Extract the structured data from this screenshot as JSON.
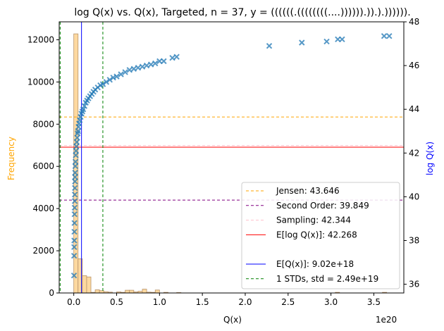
{
  "chart_data": {
    "type": "scatter",
    "title": "log Q(x) vs. Q(x), Targeted, n = 37, y = ((((((.((((((((....)))))).)).).)))))).",
    "xlabel": "Q(x)",
    "x_offset_label": "1e20",
    "ylabel_left": "Frequency",
    "ylabel_right": "log Q(x)",
    "xlim": [
      -0.17,
      3.85
    ],
    "ylim_left": [
      0,
      12850
    ],
    "ylim_right": [
      35.6,
      48
    ],
    "x_ticks": [
      0.0,
      0.5,
      1.0,
      1.5,
      2.0,
      2.5,
      3.0,
      3.5
    ],
    "x_tick_labels": [
      "0.0",
      "0.5",
      "1.0",
      "1.5",
      "2.0",
      "2.5",
      "3.0",
      "3.5"
    ],
    "y_left_ticks": [
      0,
      2000,
      4000,
      6000,
      8000,
      10000,
      12000
    ],
    "y_right_ticks": [
      36,
      38,
      40,
      42,
      44,
      46,
      48
    ],
    "colors": {
      "histogram_fill": "#fdd9a0",
      "histogram_edge": "#b8936a",
      "scatter": "#1f77b4",
      "jensen": "#ffa500",
      "second_order": "#800080",
      "sampling": "#ffc0cb",
      "e_log_q": "#ff0000",
      "e_q": "#0000ff",
      "std": "#008000",
      "left_label": "#ffa500",
      "right_label": "#0000ff"
    },
    "histogram": {
      "bin_width": 0.05,
      "bins": [
        {
          "x": 0.0,
          "count": 12280
        },
        {
          "x": 0.05,
          "count": 1620
        },
        {
          "x": 0.1,
          "count": 820
        },
        {
          "x": 0.15,
          "count": 760
        },
        {
          "x": 0.2,
          "count": 30
        },
        {
          "x": 0.25,
          "count": 150
        },
        {
          "x": 0.3,
          "count": 110
        },
        {
          "x": 0.35,
          "count": 60
        },
        {
          "x": 0.4,
          "count": 40
        },
        {
          "x": 0.5,
          "count": 50
        },
        {
          "x": 0.55,
          "count": 30
        },
        {
          "x": 0.6,
          "count": 130
        },
        {
          "x": 0.65,
          "count": 130
        },
        {
          "x": 0.7,
          "count": 50
        },
        {
          "x": 0.75,
          "count": 80
        },
        {
          "x": 0.8,
          "count": 180
        },
        {
          "x": 0.85,
          "count": 40
        },
        {
          "x": 0.9,
          "count": 30
        },
        {
          "x": 0.95,
          "count": 140
        },
        {
          "x": 1.05,
          "count": 30
        },
        {
          "x": 1.2,
          "count": 20
        },
        {
          "x": 3.05,
          "count": 30
        },
        {
          "x": 3.6,
          "count": 30
        }
      ]
    },
    "scatter_points": [
      [
        0.003,
        36.4
      ],
      [
        0.004,
        37.3
      ],
      [
        0.005,
        37.7
      ],
      [
        0.006,
        38.0
      ],
      [
        0.007,
        38.4
      ],
      [
        0.008,
        38.8
      ],
      [
        0.009,
        39.2
      ],
      [
        0.01,
        39.5
      ],
      [
        0.011,
        39.8
      ],
      [
        0.012,
        40.1
      ],
      [
        0.013,
        40.4
      ],
      [
        0.014,
        40.7
      ],
      [
        0.015,
        40.9
      ],
      [
        0.016,
        41.1
      ],
      [
        0.018,
        41.4
      ],
      [
        0.02,
        41.6
      ],
      [
        0.023,
        41.9
      ],
      [
        0.026,
        42.1
      ],
      [
        0.03,
        42.3
      ],
      [
        0.035,
        42.5
      ],
      [
        0.04,
        42.7
      ],
      [
        0.045,
        42.9
      ],
      [
        0.05,
        43.0
      ],
      [
        0.055,
        43.2
      ],
      [
        0.062,
        43.35
      ],
      [
        0.07,
        43.5
      ],
      [
        0.08,
        43.65
      ],
      [
        0.09,
        43.8
      ],
      [
        0.1,
        43.9
      ],
      [
        0.11,
        44.0
      ],
      [
        0.125,
        44.15
      ],
      [
        0.14,
        44.3
      ],
      [
        0.155,
        44.4
      ],
      [
        0.17,
        44.5
      ],
      [
        0.19,
        44.6
      ],
      [
        0.21,
        44.7
      ],
      [
        0.23,
        44.8
      ],
      [
        0.25,
        44.9
      ],
      [
        0.28,
        45.0
      ],
      [
        0.31,
        45.1
      ],
      [
        0.34,
        45.15
      ],
      [
        0.38,
        45.25
      ],
      [
        0.42,
        45.35
      ],
      [
        0.46,
        45.45
      ],
      [
        0.5,
        45.5
      ],
      [
        0.55,
        45.6
      ],
      [
        0.6,
        45.7
      ],
      [
        0.65,
        45.8
      ],
      [
        0.7,
        45.85
      ],
      [
        0.75,
        45.9
      ],
      [
        0.8,
        45.95
      ],
      [
        0.85,
        46.0
      ],
      [
        0.9,
        46.05
      ],
      [
        0.95,
        46.1
      ],
      [
        1.0,
        46.2
      ],
      [
        1.05,
        46.2
      ],
      [
        1.15,
        46.35
      ],
      [
        1.2,
        46.4
      ],
      [
        2.28,
        46.9
      ],
      [
        2.66,
        47.05
      ],
      [
        2.95,
        47.1
      ],
      [
        3.08,
        47.2
      ],
      [
        3.13,
        47.2
      ],
      [
        3.62,
        47.35
      ],
      [
        3.68,
        47.35
      ]
    ],
    "reference_lines": {
      "jensen": 43.646,
      "second_order": 39.849,
      "sampling": 42.344,
      "e_log_q": 42.268,
      "e_q": 0.0902,
      "std_low": -0.1588,
      "std_high": 0.3392
    },
    "legend": {
      "placement": "lower right",
      "entries": [
        {
          "key": "jensen",
          "label": "Jensen: 43.646"
        },
        {
          "key": "second_order",
          "label": "Second Order: 39.849"
        },
        {
          "key": "sampling",
          "label": "Sampling: 42.344"
        },
        {
          "key": "e_log_q",
          "label": "E[log Q(x)]: 42.268"
        },
        {
          "key": "blank",
          "label": ""
        },
        {
          "key": "e_q",
          "label": "E[Q(x)]: 9.02e+18"
        },
        {
          "key": "std",
          "label": "1 STDs, std = 2.49e+19"
        }
      ]
    }
  }
}
